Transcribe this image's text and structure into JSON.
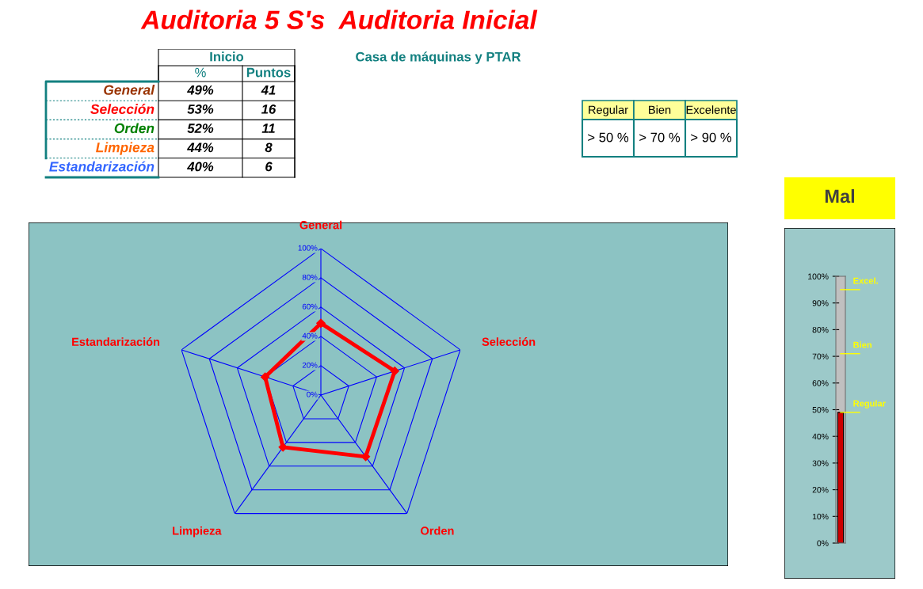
{
  "chart_data": [
    {
      "type": "other",
      "title": "Auditoria 5 S's  Auditoria Inicial",
      "subtitle": "Casa de máquinas y PTAR"
    },
    {
      "type": "other",
      "title": "Inicio",
      "categories": [
        "%",
        "Puntos"
      ],
      "y_categories": [
        "General",
        "Selección",
        "Orden",
        "Limpieza",
        "Estandarización"
      ],
      "colors": [
        "#993300",
        "#ff0000",
        "#008000",
        "#ff6600",
        "#3366ff"
      ],
      "cell_labels": [
        [
          "49%",
          "41"
        ],
        [
          "53%",
          "16"
        ],
        [
          "52%",
          "11"
        ],
        [
          "44%",
          "8"
        ],
        [
          "40%",
          "6"
        ]
      ]
    },
    {
      "type": "other",
      "categories": [
        "Regular",
        "Bien",
        "Excelente"
      ],
      "color": "#ffff99",
      "cell_labels": [
        [
          "> 50 %",
          "> 70 %",
          "> 90 %"
        ]
      ]
    },
    {
      "type": "radar",
      "categories": [
        "General",
        "Selección",
        "Orden",
        "Limpieza",
        "Estandarización"
      ],
      "ylim": [
        0,
        100
      ],
      "yticks": [
        {
          "value": 0,
          "label": "0%"
        },
        {
          "value": 20,
          "label": "20%"
        },
        {
          "value": 40,
          "label": "40%"
        },
        {
          "value": 60,
          "label": "60%"
        },
        {
          "value": 80,
          "label": "80%"
        },
        {
          "value": 100,
          "label": "100%"
        }
      ],
      "grid": true,
      "marker": "diamond",
      "line_style": "solid",
      "series": [
        {
          "color": "#ff0000",
          "values": [
            49,
            53,
            52,
            44,
            40
          ]
        }
      ]
    },
    {
      "type": "bar",
      "categories": [
        null
      ],
      "values": [
        49
      ],
      "color": "#cc0000",
      "ylim": [
        0,
        100
      ],
      "yticks": [
        {
          "value": 0,
          "label": "0%"
        },
        {
          "value": 10,
          "label": "10%"
        },
        {
          "value": 20,
          "label": "20%"
        },
        {
          "value": 30,
          "label": "30%"
        },
        {
          "value": 40,
          "label": "40%"
        },
        {
          "value": 50,
          "label": "50%"
        },
        {
          "value": 60,
          "label": "60%"
        },
        {
          "value": 70,
          "label": "70%"
        },
        {
          "value": 80,
          "label": "80%"
        },
        {
          "value": 90,
          "label": "90%"
        },
        {
          "value": 100,
          "label": "100%"
        }
      ],
      "tick_labels": "y",
      "annotations": [
        "Mal"
      ],
      "ref_lines": [
        {
          "axis": "y",
          "value": 95,
          "label": "Excel.",
          "color": "#ffff00"
        },
        {
          "axis": "y",
          "value": 71,
          "label": "Bien",
          "color": "#ffff00"
        },
        {
          "axis": "y",
          "value": 49,
          "label": "Regular",
          "color": "#ffff00"
        }
      ]
    }
  ]
}
